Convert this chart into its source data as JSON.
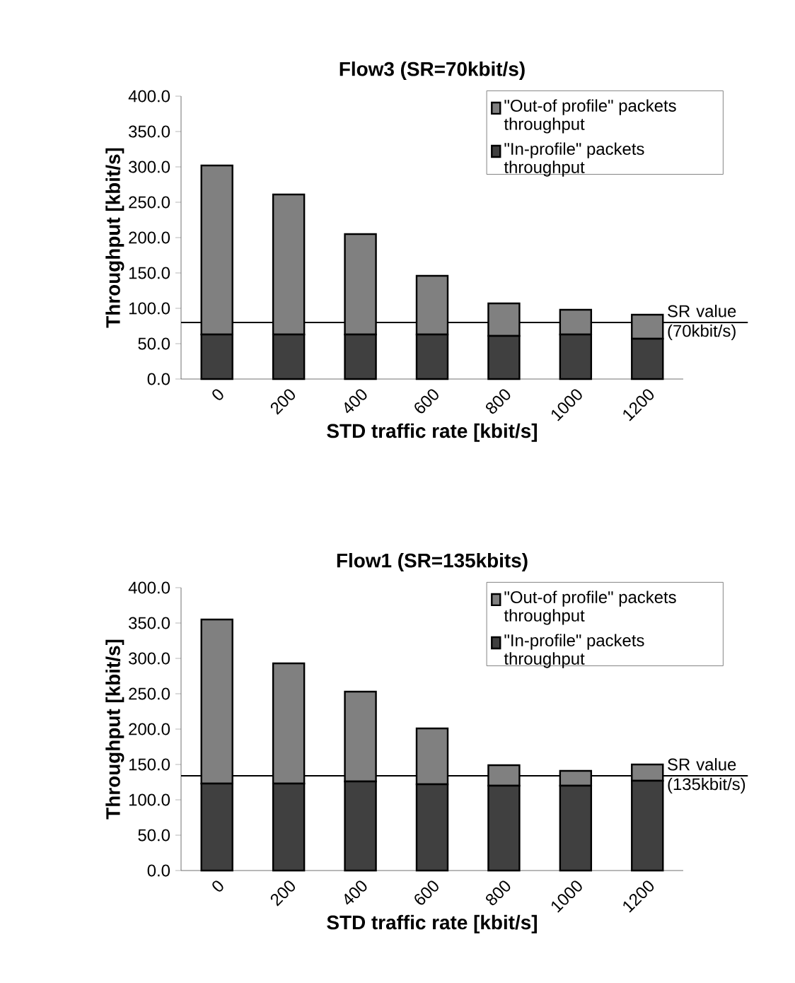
{
  "chart_data": [
    {
      "type": "bar",
      "title": "Flow3 (SR=70kbit/s)",
      "xlabel": "STD traffic rate [kbit/s]",
      "ylabel": "Throughput [kbit/s]",
      "categories": [
        "0",
        "200",
        "400",
        "600",
        "800",
        "1000",
        "1200"
      ],
      "stacked": true,
      "series": [
        {
          "name": "\"In-profile\" packets throughput",
          "color": "#404040",
          "values": [
            63,
            63,
            63,
            63,
            61,
            63,
            57
          ]
        },
        {
          "name": "\"Out-of profile\" packets throughput",
          "color": "#808080",
          "values": [
            239,
            198,
            142,
            83,
            46,
            35,
            34
          ]
        }
      ],
      "ylim": [
        0,
        400
      ],
      "yticks": [
        {
          "value": 0,
          "label": "0.0"
        },
        {
          "value": 50,
          "label": "50.0"
        },
        {
          "value": 100,
          "label": "100.0"
        },
        {
          "value": 150,
          "label": "150.0"
        },
        {
          "value": 200,
          "label": "200.0"
        },
        {
          "value": 250,
          "label": "250.0"
        },
        {
          "value": 300,
          "label": "300.0"
        },
        {
          "value": 350,
          "label": "350.0"
        },
        {
          "value": 400,
          "label": "400.0"
        }
      ],
      "ref_lines": [
        {
          "axis": "y",
          "value": 80,
          "label": "SR value (70kbit/s)",
          "color": "#000000"
        }
      ],
      "legend": "top right"
    },
    {
      "type": "bar",
      "title": "Flow1 (SR=135kbits)",
      "xlabel": "STD traffic rate [kbit/s]",
      "ylabel": "Throughput [kbit/s]",
      "categories": [
        "0",
        "200",
        "400",
        "600",
        "800",
        "1000",
        "1200"
      ],
      "stacked": true,
      "series": [
        {
          "name": "\"In-profile\" packets throughput",
          "color": "#404040",
          "values": [
            123,
            123,
            126,
            122,
            120,
            120,
            127
          ]
        },
        {
          "name": "\"Out-of profile\" packets throughput",
          "color": "#808080",
          "values": [
            232,
            170,
            127,
            79,
            29,
            21,
            23
          ]
        }
      ],
      "ylim": [
        0,
        400
      ],
      "yticks": [
        {
          "value": 0,
          "label": "0.0"
        },
        {
          "value": 50,
          "label": "50.0"
        },
        {
          "value": 100,
          "label": "100.0"
        },
        {
          "value": 150,
          "label": "150.0"
        },
        {
          "value": 200,
          "label": "200.0"
        },
        {
          "value": 250,
          "label": "250.0"
        },
        {
          "value": 300,
          "label": "300.0"
        },
        {
          "value": 350,
          "label": "350.0"
        },
        {
          "value": 400,
          "label": "400.0"
        }
      ],
      "ref_lines": [
        {
          "axis": "y",
          "value": 134,
          "label": "SR value (135kbit/s)",
          "color": "#000000"
        }
      ],
      "legend": "top right"
    }
  ]
}
